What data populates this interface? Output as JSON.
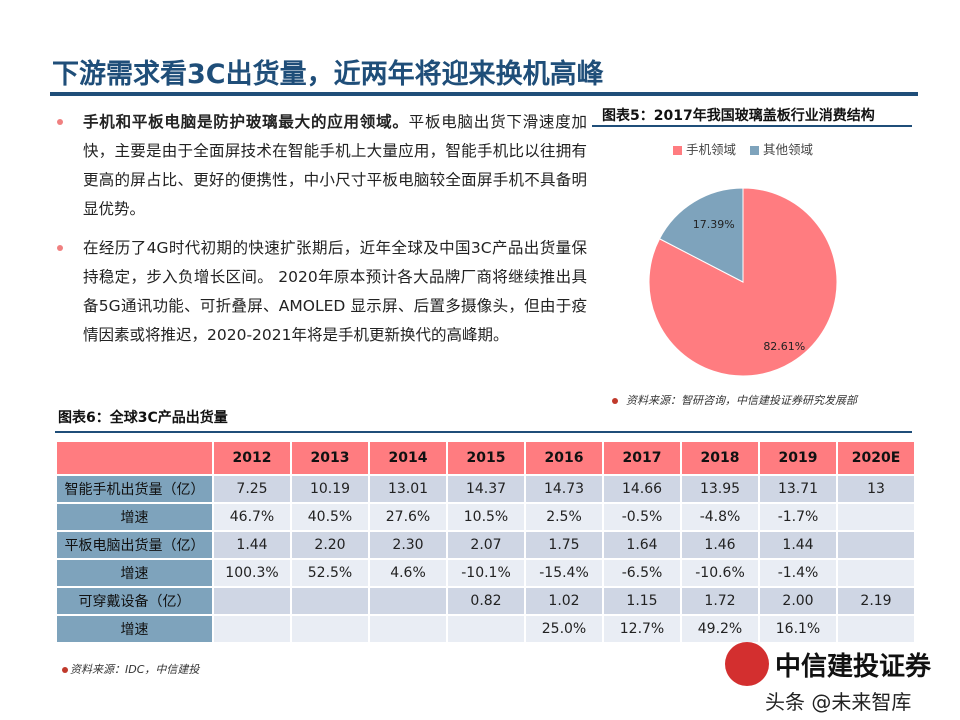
{
  "title": "下游需求看3C出货量，近两年将迎来换机高峰",
  "bullets": [
    {
      "bold": "手机和平板电脑是防护玻璃最大的应用领域。",
      "text": "平板电脑出货下滑速度加快，主要是由于全面屏技术在智能手机上大量应用，智能手机比以往拥有更高的屏占比、更好的便携性，中小尺寸平板电脑较全面屏手机不具备明显优势。"
    },
    {
      "bold": "",
      "text": "在经历了4G时代初期的快速扩张期后，近年全球及中国3C产品出货量保持稳定，步入负增长区间。 2020年原本预计各大品牌厂商将继续推出具备5G通讯功能、可折叠屏、AMOLED 显示屏、后置多摄像头，但由于疫情因素或将推迟，2020-2021年将是手机更新换代的高峰期。"
    }
  ],
  "figure5": {
    "title": "图表5：2017年我国玻璃盖板行业消费结构",
    "source": "资料来源：智研咨询，中信建投证券研究发展部"
  },
  "chart_data": {
    "type": "pie",
    "title": "图表5：2017年我国玻璃盖板行业消费结构",
    "legend_position": "top",
    "slices": [
      {
        "name": "手机领域",
        "value": 82.61,
        "label": "82.61%",
        "color": "#ff7c80"
      },
      {
        "name": "其他领域",
        "value": 17.39,
        "label": "17.39%",
        "color": "#7ea3bc"
      }
    ]
  },
  "figure6": {
    "title": "图表6：全球3C产品出货量",
    "source": "资料来源：IDC，中信建投",
    "columns": [
      "2012",
      "2013",
      "2014",
      "2015",
      "2016",
      "2017",
      "2018",
      "2019",
      "2020E"
    ],
    "rows": [
      {
        "label": "智能手机出货量（亿）",
        "cells": [
          "7.25",
          "10.19",
          "13.01",
          "14.37",
          "14.73",
          "14.66",
          "13.95",
          "13.71",
          "13"
        ]
      },
      {
        "label": "增速",
        "cells": [
          "46.7%",
          "40.5%",
          "27.6%",
          "10.5%",
          "2.5%",
          "-0.5%",
          "-4.8%",
          "-1.7%",
          ""
        ]
      },
      {
        "label": "平板电脑出货量（亿）",
        "cells": [
          "1.44",
          "2.20",
          "2.30",
          "2.07",
          "1.75",
          "1.64",
          "1.46",
          "1.44",
          ""
        ]
      },
      {
        "label": "增速",
        "cells": [
          "100.3%",
          "52.5%",
          "4.6%",
          "-10.1%",
          "-15.4%",
          "-6.5%",
          "-10.6%",
          "-1.4%",
          ""
        ]
      },
      {
        "label": "可穿戴设备（亿）",
        "cells": [
          "",
          "",
          "",
          "0.82",
          "1.02",
          "1.15",
          "1.72",
          "2.00",
          "2.19"
        ]
      },
      {
        "label": "增速",
        "cells": [
          "",
          "",
          "",
          "",
          "25.0%",
          "12.7%",
          "49.2%",
          "16.1%",
          ""
        ]
      }
    ]
  },
  "logo": {
    "name": "中信建投证券"
  },
  "watermark": "头条 @未来智库"
}
